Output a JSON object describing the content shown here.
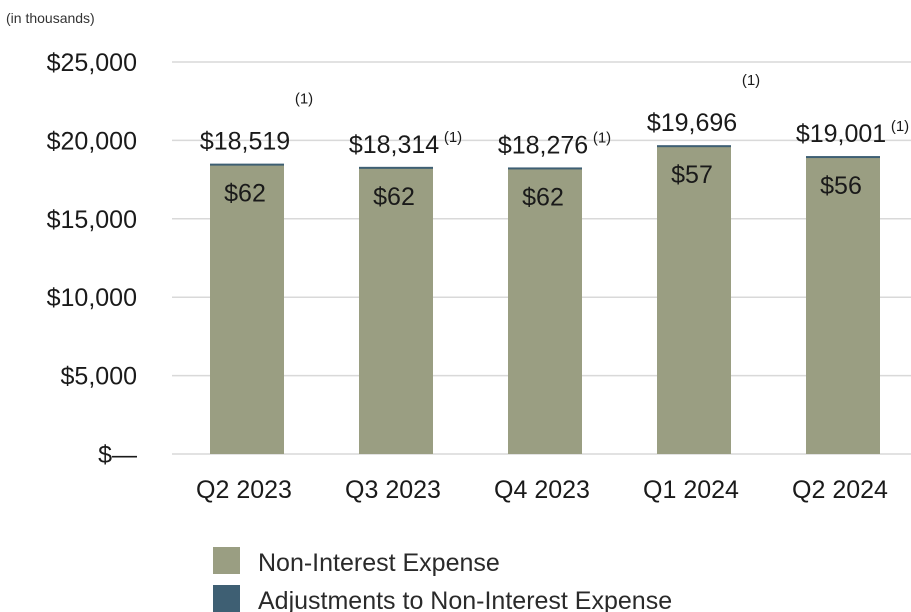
{
  "unit_note": "(in thousands)",
  "chart_data": {
    "type": "bar",
    "stacked": true,
    "categories": [
      "Q2 2023",
      "Q3 2023",
      "Q4 2023",
      "Q1 2024",
      "Q2 2024"
    ],
    "series": [
      {
        "name": "Non-Interest Expense",
        "color": "#9a9e82",
        "values": [
          18457,
          18252,
          18214,
          19639,
          18945
        ]
      },
      {
        "name": "Adjustments to Non-Interest Expense",
        "color": "#3e5f73",
        "values": [
          62,
          62,
          62,
          57,
          56
        ]
      }
    ],
    "total_labels": [
      "$18,519",
      "$18,314",
      "$18,276",
      "$19,696",
      "$19,001"
    ],
    "adjustment_labels": [
      "$62",
      "$62",
      "$62",
      "$57",
      "$56"
    ],
    "footnote_marker": "(1)",
    "y_ticks": [
      {
        "value": 0,
        "label": "$—"
      },
      {
        "value": 5000,
        "label": "$5,000"
      },
      {
        "value": 10000,
        "label": "$10,000"
      },
      {
        "value": 15000,
        "label": "$15,000"
      },
      {
        "value": 20000,
        "label": "$20,000"
      },
      {
        "value": 25000,
        "label": "$25,000"
      }
    ],
    "ylim": [
      0,
      25000
    ],
    "grid": true,
    "legend_position": "bottom"
  }
}
